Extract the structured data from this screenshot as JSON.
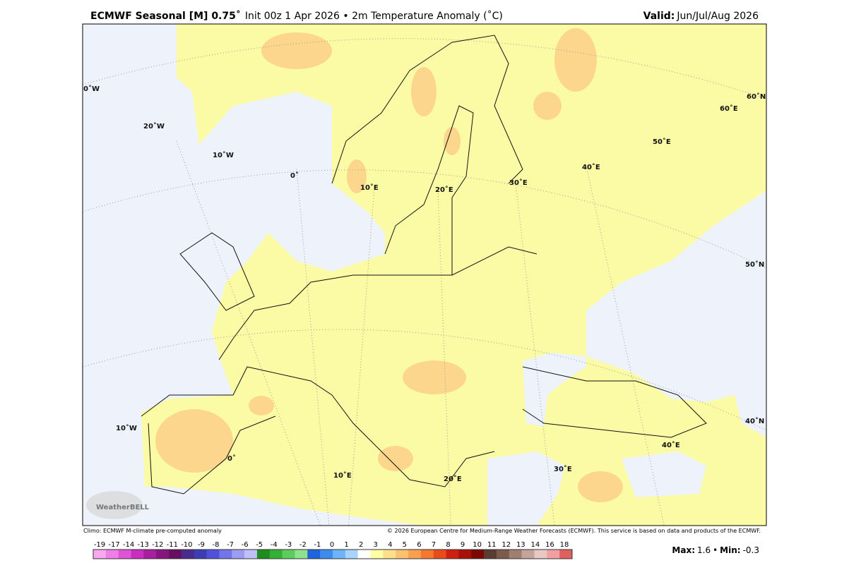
{
  "header": {
    "title_bold": "ECMWF Seasonal [M] 0.75˚",
    "title_rest": "Init 00z 1 Apr 2026 • 2m Temperature Anomaly (˚C)",
    "valid_label": "Valid:",
    "valid_value": "Jun/Jul/Aug 2026"
  },
  "map_labels": [
    "0˚W",
    "20˚W",
    "10˚W",
    "0˚",
    "10˚E",
    "20˚E",
    "30˚E",
    "40˚E",
    "50˚E",
    "60˚E",
    "60˚N",
    "50˚N",
    "40˚N",
    "10˚W",
    "0˚",
    "10˚E",
    "20˚E",
    "30˚E",
    "40˚E"
  ],
  "logo": "WeatherBELL",
  "footer": {
    "climo": "Climo: ECMWF M-climate pre-computed anomaly",
    "copyright": "© 2026 European Centre for Medium-Range Weather Forecasts (ECMWF). This service is based on data and products of the ECMWF."
  },
  "colorbar": {
    "labels": [
      -19,
      -17,
      -14,
      -13,
      -12,
      -11,
      -10,
      -9,
      -8,
      -7,
      -6,
      -5,
      -4,
      -3,
      -2,
      -1,
      0,
      1,
      2,
      3,
      4,
      5,
      6,
      7,
      8,
      9,
      10,
      11,
      12,
      13,
      14,
      16,
      18
    ],
    "colors": [
      "#f7a8f0",
      "#ef7ee6",
      "#e052d6",
      "#c92ec0",
      "#a71e9e",
      "#86157f",
      "#661060",
      "#4a2a8c",
      "#3c3cb4",
      "#5050d8",
      "#7474ea",
      "#9c9cf2",
      "#c0c0f8",
      "#1e8c1e",
      "#34b034",
      "#5ccc5c",
      "#8ee28e",
      "#1e64dc",
      "#3c8cf0",
      "#6eb4f8",
      "#a8d4fc",
      "#ffffff",
      "#ffffa8",
      "#fde08a",
      "#fcc070",
      "#f8a050",
      "#f47830",
      "#e84c1c",
      "#d02010",
      "#a81008",
      "#7c0804",
      "#5a3c30",
      "#7c5a4c",
      "#a07e70",
      "#c4a49a",
      "#e8c8c4",
      "#f0a0a0",
      "#e06060"
    ]
  },
  "stats": {
    "max_label": "Max:",
    "max": 1.6,
    "separator": "•",
    "min_label": "Min:",
    "min": -0.3
  }
}
